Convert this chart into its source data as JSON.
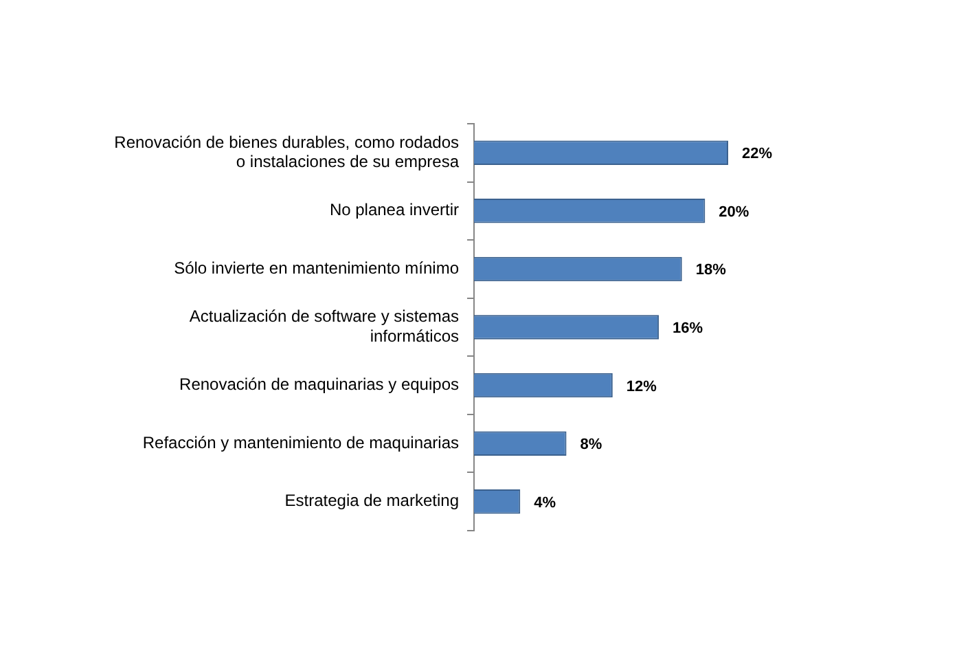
{
  "chart_data": {
    "type": "bar",
    "orientation": "horizontal",
    "categories": [
      "Renovación de bienes durables, como rodados o instalaciones de su empresa",
      "No planea invertir",
      "Sólo invierte en mantenimiento mínimo",
      "Actualización de software y sistemas informáticos",
      "Renovación de maquinarias y equipos",
      "Refacción y mantenimiento de maquinarias",
      "Estrategia de marketing"
    ],
    "values": [
      22,
      20,
      18,
      16,
      12,
      8,
      4
    ],
    "value_labels": [
      "22%",
      "20%",
      "18%",
      "16%",
      "12%",
      "8%",
      "4%"
    ],
    "color": "#4f81bd",
    "tick_labels": "y"
  }
}
